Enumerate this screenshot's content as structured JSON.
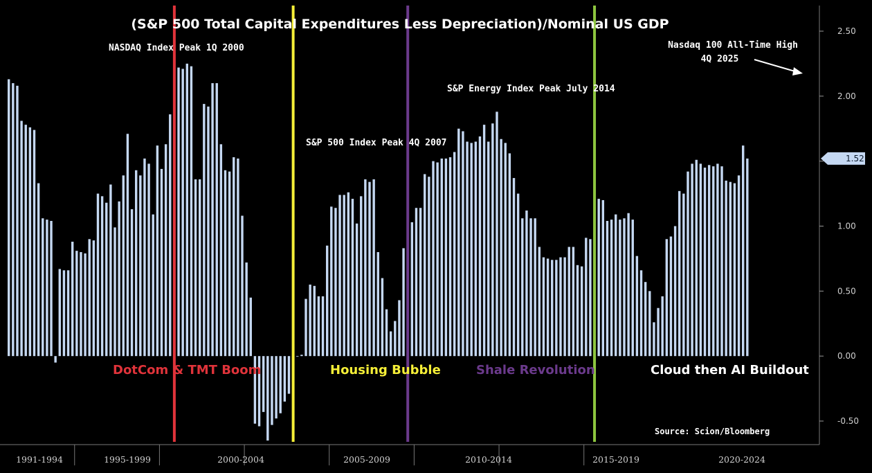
{
  "chart_data": {
    "type": "bar",
    "title": "(S&P 500 Total Capital Expenditures Less Depreciation)/Nominal US GDP",
    "source": "Source: Scion/Bloomberg",
    "ylim": [
      -0.65,
      2.68
    ],
    "yticks": [
      "2.50",
      "2.00",
      "1.50",
      "1.00",
      "0.50",
      "0.00",
      "-0.50"
    ],
    "ytick_values": [
      2.5,
      2.0,
      1.5,
      1.0,
      0.5,
      0.0,
      -0.5
    ],
    "last_value_label": "1.52",
    "last_value": 1.52,
    "period_labels": [
      "1991-1994",
      "1995-1999",
      "2000-2004",
      "2005-2009",
      "2010-2014",
      "2015-2019",
      "2020-2024"
    ],
    "period_quarters": [
      16,
      20,
      20,
      20,
      20,
      20,
      20
    ],
    "values": [
      2.13,
      2.1,
      2.08,
      1.81,
      1.78,
      1.76,
      1.74,
      1.33,
      1.06,
      1.05,
      1.04,
      -0.05,
      0.67,
      0.66,
      0.66,
      0.88,
      0.81,
      0.8,
      0.79,
      0.9,
      0.89,
      1.25,
      1.23,
      1.18,
      1.32,
      0.99,
      1.19,
      1.39,
      1.71,
      1.13,
      1.43,
      1.39,
      1.52,
      1.48,
      1.09,
      1.62,
      1.44,
      1.63,
      1.86,
      2.32,
      2.22,
      2.21,
      2.25,
      2.23,
      1.36,
      1.36,
      1.94,
      1.92,
      2.1,
      2.1,
      1.63,
      1.43,
      1.42,
      1.53,
      1.52,
      1.08,
      0.72,
      0.45,
      -0.52,
      -0.54,
      -0.43,
      -0.65,
      -0.53,
      -0.48,
      -0.44,
      -0.35,
      -0.29,
      -0.2,
      0.0,
      0.01,
      0.44,
      0.55,
      0.54,
      0.46,
      0.46,
      0.85,
      1.15,
      1.14,
      1.24,
      1.24,
      1.26,
      1.21,
      1.02,
      1.23,
      1.36,
      1.34,
      1.36,
      0.8,
      0.6,
      0.36,
      0.19,
      0.27,
      0.43,
      0.83,
      0.79,
      1.03,
      1.14,
      1.14,
      1.4,
      1.38,
      1.5,
      1.49,
      1.52,
      1.52,
      1.53,
      1.57,
      1.75,
      1.73,
      1.65,
      1.64,
      1.65,
      1.69,
      1.78,
      1.65,
      1.79,
      1.88,
      1.67,
      1.64,
      1.56,
      1.37,
      1.25,
      1.06,
      1.12,
      1.06,
      1.06,
      0.84,
      0.76,
      0.75,
      0.74,
      0.74,
      0.76,
      0.76,
      0.84,
      0.84,
      0.7,
      0.69,
      0.91,
      0.9,
      0.95,
      1.21,
      1.2,
      1.04,
      1.05,
      1.09,
      1.05,
      1.06,
      1.1,
      1.05,
      0.77,
      0.66,
      0.57,
      0.5,
      0.26,
      0.37,
      0.46,
      0.9,
      0.92,
      1.0,
      1.27,
      1.25,
      1.42,
      1.48,
      1.51,
      1.48,
      1.45,
      1.47,
      1.46,
      1.48,
      1.46,
      1.35,
      1.34,
      1.33,
      1.39,
      1.62,
      1.52
    ],
    "series": [
      {
        "name": "",
        "color": "#c5d8f2"
      }
    ],
    "annotations": [
      {
        "text": "NASDAQ Index Peak 1Q 2000",
        "line_color": "#e0333a",
        "quarter_index": 39
      },
      {
        "text": "S&P 500 Index Peak 4Q 2007",
        "line_color": "#f6ef37",
        "quarter_index": 67
      },
      {
        "text": "S&P Energy Index Peak July 2014",
        "line_color": "#6b3a8c",
        "quarter_index": 94
      },
      {
        "text_line1": "Nasdaq 100 All-Time High",
        "text_line2": "4Q 2025",
        "line_color": "#8dc63f",
        "quarter_index": 138
      }
    ],
    "eras": [
      {
        "text": "DotCom & TMT Boom",
        "color": "#e0333a"
      },
      {
        "text": "Housing Bubble",
        "color": "#f6ef37"
      },
      {
        "text": "Shale Revolution",
        "color": "#6b3a8c"
      },
      {
        "text": "Cloud then AI Buildout",
        "color": "#ffffff"
      }
    ],
    "legend": "none",
    "grid": false
  }
}
